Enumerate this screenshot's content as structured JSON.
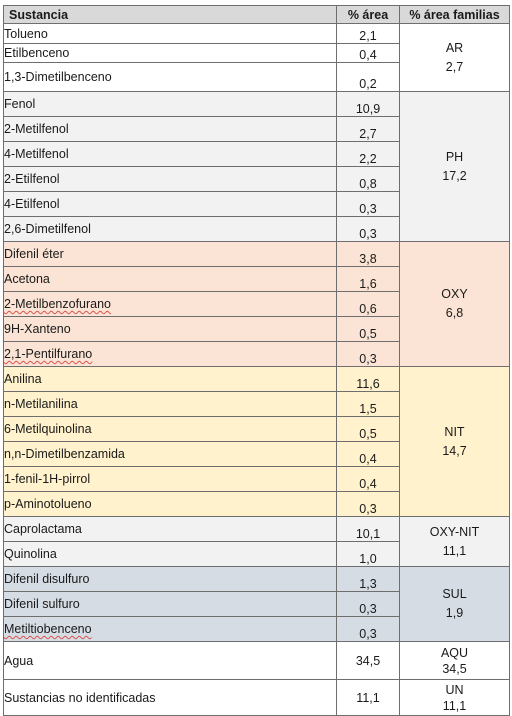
{
  "header": {
    "substance": "Sustancia",
    "area": "% área",
    "family_area": "% área familias"
  },
  "groups": [
    {
      "code": "AR",
      "pct": "2,7",
      "tint": "#ffffff",
      "rows": [
        {
          "name": "Tolueno",
          "value": "2,1"
        },
        {
          "name": "Etilbenceno",
          "value": "0,4"
        },
        {
          "name": "1,3-Dimetilbenceno",
          "value": "0,2"
        }
      ]
    },
    {
      "code": "PH",
      "pct": "17,2",
      "tint": "#f2f2f2",
      "rows": [
        {
          "name": "Fenol",
          "value": "10,9"
        },
        {
          "name": "2-Metilfenol",
          "value": "2,7"
        },
        {
          "name": "4-Metilfenol",
          "value": "2,2"
        },
        {
          "name": "2-Etilfenol",
          "value": "0,8"
        },
        {
          "name": "4-Etilfenol",
          "value": "0,3"
        },
        {
          "name": "2,6-Dimetilfenol",
          "value": "0,3"
        }
      ]
    },
    {
      "code": "OXY",
      "pct": "6,8",
      "tint": "#fbe4d5",
      "rows": [
        {
          "name": "Difenil éter",
          "value": "3,8"
        },
        {
          "name": "Acetona",
          "value": "1,6"
        },
        {
          "name": "2-Metilbenzofurano",
          "value": "0,6"
        },
        {
          "name": "9H-Xanteno",
          "value": "0,5"
        },
        {
          "name": "2,1-Pentilfurano",
          "value": "0,3"
        }
      ]
    },
    {
      "code": "NIT",
      "pct": "14,7",
      "tint": "#fff2cc",
      "rows": [
        {
          "name": "Anilina",
          "value": "11,6"
        },
        {
          "name": "n-Metilanilina",
          "value": "1,5"
        },
        {
          "name": "6-Metilquinolina",
          "value": "0,5"
        },
        {
          "name": "n,n-Dimetilbenzamida",
          "value": "0,4"
        },
        {
          "name": "1-fenil-1H-pirrol",
          "value": "0,4"
        },
        {
          "name": "p-Aminotolueno",
          "value": "0,3"
        }
      ]
    },
    {
      "code": "OXY-NIT",
      "pct": "11,1",
      "tint": "#f2f2f2",
      "rows": [
        {
          "name": "Caprolactama",
          "value": "10,1"
        },
        {
          "name": "Quinolina",
          "value": "1,0"
        }
      ]
    },
    {
      "code": "SUL",
      "pct": "1,9",
      "tint": "#d5dce4",
      "rows": [
        {
          "name": "Difenil disulfuro",
          "value": "1,3"
        },
        {
          "name": "Difenil sulfuro",
          "value": "0,3"
        },
        {
          "name": "Metiltiobenceno",
          "value": "0,3"
        }
      ]
    },
    {
      "code": "AQU",
      "pct": "34,5",
      "tint": "#ffffff",
      "rows": [
        {
          "name": "Agua",
          "value": "34,5"
        }
      ]
    },
    {
      "code": "UN",
      "pct": "11,1",
      "tint": "#ffffff",
      "rows": [
        {
          "name": "Sustancias no identificadas",
          "value": "11,1"
        }
      ]
    }
  ]
}
